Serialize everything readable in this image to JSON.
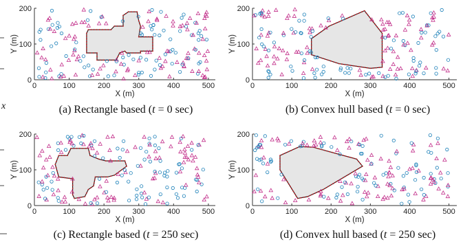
{
  "fragments": {
    "left_x": "x"
  },
  "charts": [
    {
      "caption": {
        "a": "(a) Rectangle based (",
        "b": "t",
        "c": " = 0 sec)"
      },
      "xlabel": "X (m)",
      "ylabel": "Y (m)",
      "xlim": [
        0,
        520
      ],
      "ylim": [
        0,
        200
      ],
      "xticks": [
        0,
        100,
        200,
        300,
        400,
        500
      ],
      "yticks": [
        0,
        100,
        200
      ],
      "polygon": [
        [
          150,
          75
        ],
        [
          180,
          75
        ],
        [
          180,
          55
        ],
        [
          235,
          55
        ],
        [
          245,
          75
        ],
        [
          260,
          80
        ],
        [
          265,
          75
        ],
        [
          305,
          75
        ],
        [
          305,
          80
        ],
        [
          340,
          80
        ],
        [
          340,
          120
        ],
        [
          300,
          120
        ],
        [
          305,
          150
        ],
        [
          300,
          165
        ],
        [
          295,
          190
        ],
        [
          270,
          190
        ],
        [
          255,
          180
        ],
        [
          255,
          150
        ],
        [
          230,
          150
        ],
        [
          220,
          140
        ],
        [
          155,
          140
        ],
        [
          150,
          130
        ],
        [
          150,
          75
        ]
      ],
      "seed": 11
    },
    {
      "caption": {
        "a": "(b) Convex hull based (",
        "b": "t",
        "c": " = 0 sec)"
      },
      "xlabel": "X (m)",
      "ylabel": "Y (m)",
      "xlim": [
        0,
        520
      ],
      "ylim": [
        0,
        200
      ],
      "xticks": [
        0,
        100,
        200,
        300,
        400,
        500
      ],
      "yticks": [
        0,
        100,
        200
      ],
      "polygon": [
        [
          150,
          115
        ],
        [
          195,
          150
        ],
        [
          285,
          193
        ],
        [
          330,
          130
        ],
        [
          330,
          35
        ],
        [
          300,
          32
        ],
        [
          220,
          45
        ],
        [
          150,
          70
        ],
        [
          150,
          115
        ]
      ],
      "seed": 23
    },
    {
      "caption": {
        "a": "(c) Rectangle based (",
        "b": "t",
        "c": " = 250 sec)"
      },
      "xlabel": "X (m)",
      "ylabel": "Y (m)",
      "xlim": [
        0,
        520
      ],
      "ylim": [
        0,
        200
      ],
      "xticks": [
        0,
        100,
        200,
        300,
        400,
        500
      ],
      "yticks": [
        0,
        100,
        200
      ],
      "polygon": [
        [
          70,
          140
        ],
        [
          95,
          140
        ],
        [
          105,
          160
        ],
        [
          155,
          160
        ],
        [
          160,
          140
        ],
        [
          185,
          130
        ],
        [
          205,
          125
        ],
        [
          260,
          125
        ],
        [
          265,
          110
        ],
        [
          230,
          85
        ],
        [
          210,
          80
        ],
        [
          175,
          80
        ],
        [
          170,
          55
        ],
        [
          155,
          45
        ],
        [
          145,
          25
        ],
        [
          115,
          20
        ],
        [
          110,
          30
        ],
        [
          110,
          75
        ],
        [
          70,
          80
        ],
        [
          60,
          115
        ],
        [
          70,
          140
        ]
      ],
      "seed": 37
    },
    {
      "caption": {
        "a": "(d) Convex hull based (",
        "b": "t",
        "c": " = 250 sec)"
      },
      "xlabel": "X (m)",
      "ylabel": "Y (m)",
      "xlim": [
        0,
        520
      ],
      "ylim": [
        0,
        200
      ],
      "xticks": [
        0,
        100,
        200,
        300,
        400,
        500
      ],
      "yticks": [
        0,
        100,
        200
      ],
      "polygon": [
        [
          70,
          140
        ],
        [
          120,
          165
        ],
        [
          155,
          163
        ],
        [
          265,
          130
        ],
        [
          280,
          110
        ],
        [
          180,
          45
        ],
        [
          140,
          25
        ],
        [
          115,
          20
        ],
        [
          70,
          100
        ],
        [
          70,
          140
        ]
      ],
      "seed": 51
    }
  ],
  "colors": {
    "triangle": "#c22e8a",
    "circle": "#1a7fb8",
    "boundary": "#3a1a1a",
    "boundary_dot": "#c8171e",
    "fill": "#e6e6e6",
    "axis": "#333333"
  },
  "chart_data": [
    {
      "type": "scatter",
      "title": "(a) Rectangle based (t = 0 sec)",
      "xlabel": "X (m)",
      "ylabel": "Y (m)",
      "xlim": [
        0,
        520
      ],
      "ylim": [
        0,
        200
      ],
      "series_count": 2,
      "region": "rectangle-based"
    },
    {
      "type": "scatter",
      "title": "(b) Convex hull based (t = 0 sec)",
      "xlabel": "X (m)",
      "ylabel": "Y (m)",
      "xlim": [
        0,
        520
      ],
      "ylim": [
        0,
        200
      ],
      "series_count": 2,
      "region": "convex-hull"
    },
    {
      "type": "scatter",
      "title": "(c) Rectangle based (t = 250 sec)",
      "xlabel": "X (m)",
      "ylabel": "Y (m)",
      "xlim": [
        0,
        520
      ],
      "ylim": [
        0,
        200
      ],
      "series_count": 2,
      "region": "rectangle-based"
    },
    {
      "type": "scatter",
      "title": "(d) Convex hull based (t = 250 sec)",
      "xlabel": "X (m)",
      "ylabel": "Y (m)",
      "xlim": [
        0,
        520
      ],
      "ylim": [
        0,
        200
      ],
      "series_count": 2,
      "region": "convex-hull"
    }
  ]
}
